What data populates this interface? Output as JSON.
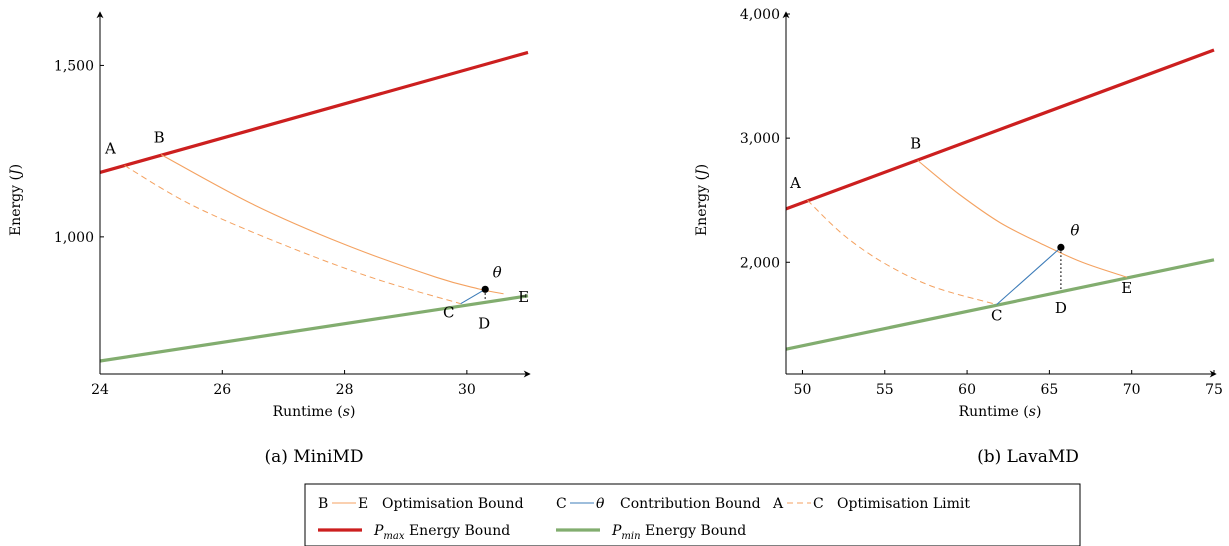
{
  "chart_data": [
    {
      "type": "line",
      "caption": "(a) MiniMD",
      "xlabel": "Runtime (s)",
      "ylabel": "Energy (J)",
      "xlim": [
        24,
        31
      ],
      "ylim": [
        600,
        1650
      ],
      "xticks": [
        24,
        26,
        28,
        30
      ],
      "xtick_labels": [
        "24",
        "26",
        "28",
        "30"
      ],
      "yticks": [
        1000,
        1500
      ],
      "ytick_labels": [
        "1,000",
        "1,500"
      ],
      "series": [
        {
          "key": "pmax",
          "color": "#cc1f1f",
          "style": "thick",
          "x": [
            24,
            31
          ],
          "y": [
            1188,
            1538
          ]
        },
        {
          "key": "pmin",
          "color": "#82ad6f",
          "style": "thick",
          "x": [
            24,
            31
          ],
          "y": [
            638,
            828
          ]
        },
        {
          "key": "opt_bound",
          "color": "#f4a261",
          "style": "solid",
          "x": [
            25.0,
            26.5,
            28.0,
            29.5,
            30.2,
            30.6
          ],
          "y": [
            1240,
            1095,
            978,
            882,
            848,
            834
          ]
        },
        {
          "key": "opt_limit",
          "color": "#f4a261",
          "style": "dashed",
          "x": [
            24.4,
            25.5,
            27.0,
            28.5,
            29.9
          ],
          "y": [
            1208,
            1093,
            977,
            878,
            805
          ]
        },
        {
          "key": "contrib_bound",
          "color": "#3d7cb8",
          "style": "solid",
          "x": [
            29.9,
            30.3
          ],
          "y": [
            805,
            847
          ]
        },
        {
          "key": "d_drop",
          "color": "#000000",
          "style": "dotted",
          "x": [
            30.3,
            30.3
          ],
          "y": [
            847,
            814
          ]
        }
      ],
      "points": [
        {
          "label": "A",
          "x": 24.4,
          "y": 1208
        },
        {
          "label": "B",
          "x": 25.0,
          "y": 1240
        },
        {
          "label": "C",
          "x": 29.9,
          "y": 805
        },
        {
          "label": "D",
          "x": 30.3,
          "y": 814
        },
        {
          "label": "E",
          "x": 30.6,
          "y": 834
        },
        {
          "label": "θ",
          "x": 30.3,
          "y": 847,
          "marker": true
        }
      ]
    },
    {
      "type": "line",
      "caption": "(b) LavaMD",
      "xlabel": "Runtime (s)",
      "ylabel": "Energy (J)",
      "xlim": [
        49,
        75
      ],
      "ylim": [
        1100,
        4000
      ],
      "xticks": [
        50,
        55,
        60,
        65,
        70,
        75
      ],
      "xtick_labels": [
        "50",
        "55",
        "60",
        "65",
        "70",
        "75"
      ],
      "yticks": [
        2000,
        3000,
        4000
      ],
      "ytick_labels": [
        "2,000",
        "3,000",
        "4,000"
      ],
      "series": [
        {
          "key": "pmax",
          "color": "#cc1f1f",
          "style": "thick",
          "x": [
            49,
            75
          ],
          "y": [
            2430,
            3710
          ]
        },
        {
          "key": "pmin",
          "color": "#82ad6f",
          "style": "thick",
          "x": [
            49,
            75
          ],
          "y": [
            1300,
            2020
          ]
        },
        {
          "key": "opt_bound",
          "color": "#f4a261",
          "style": "solid",
          "x": [
            57.0,
            59.5,
            62.0,
            64.5,
            67.0,
            69.7
          ],
          "y": [
            2820,
            2550,
            2320,
            2150,
            2000,
            1880
          ]
        },
        {
          "key": "opt_limit",
          "color": "#f4a261",
          "style": "dashed",
          "x": [
            50.3,
            52.5,
            55.0,
            58.0,
            61.8
          ],
          "y": [
            2500,
            2220,
            1990,
            1800,
            1660
          ]
        },
        {
          "key": "contrib_bound",
          "color": "#3d7cb8",
          "style": "solid",
          "x": [
            61.8,
            65.7
          ],
          "y": [
            1660,
            2120
          ]
        },
        {
          "key": "d_drop",
          "color": "#000000",
          "style": "dotted",
          "x": [
            65.7,
            65.7
          ],
          "y": [
            2120,
            1770
          ]
        }
      ],
      "points": [
        {
          "label": "A",
          "x": 50.3,
          "y": 2500
        },
        {
          "label": "B",
          "x": 57.0,
          "y": 2820
        },
        {
          "label": "C",
          "x": 61.8,
          "y": 1660
        },
        {
          "label": "D",
          "x": 65.7,
          "y": 1770
        },
        {
          "label": "E",
          "x": 69.7,
          "y": 1880
        },
        {
          "label": "θ",
          "x": 65.7,
          "y": 2120,
          "marker": true
        }
      ]
    }
  ],
  "legend": {
    "items": [
      {
        "from": "B",
        "to": "E",
        "label": "Optimisation Bound",
        "color": "#f4a261",
        "style": "solid"
      },
      {
        "from": "C",
        "to": "θ",
        "label": "Contribution Bound",
        "color": "#3d7cb8",
        "style": "solid"
      },
      {
        "from": "A",
        "to": "C",
        "label": "Optimisation Limit",
        "color": "#f4a261",
        "style": "dashed"
      },
      {
        "from": "",
        "to": "",
        "label_sym": "P",
        "label_sub": "max",
        "label": "Energy Bound",
        "color": "#cc1f1f",
        "style": "thick"
      },
      {
        "from": "",
        "to": "",
        "label_sym": "P",
        "label_sub": "min",
        "label": "Energy Bound",
        "color": "#82ad6f",
        "style": "thick"
      }
    ]
  }
}
